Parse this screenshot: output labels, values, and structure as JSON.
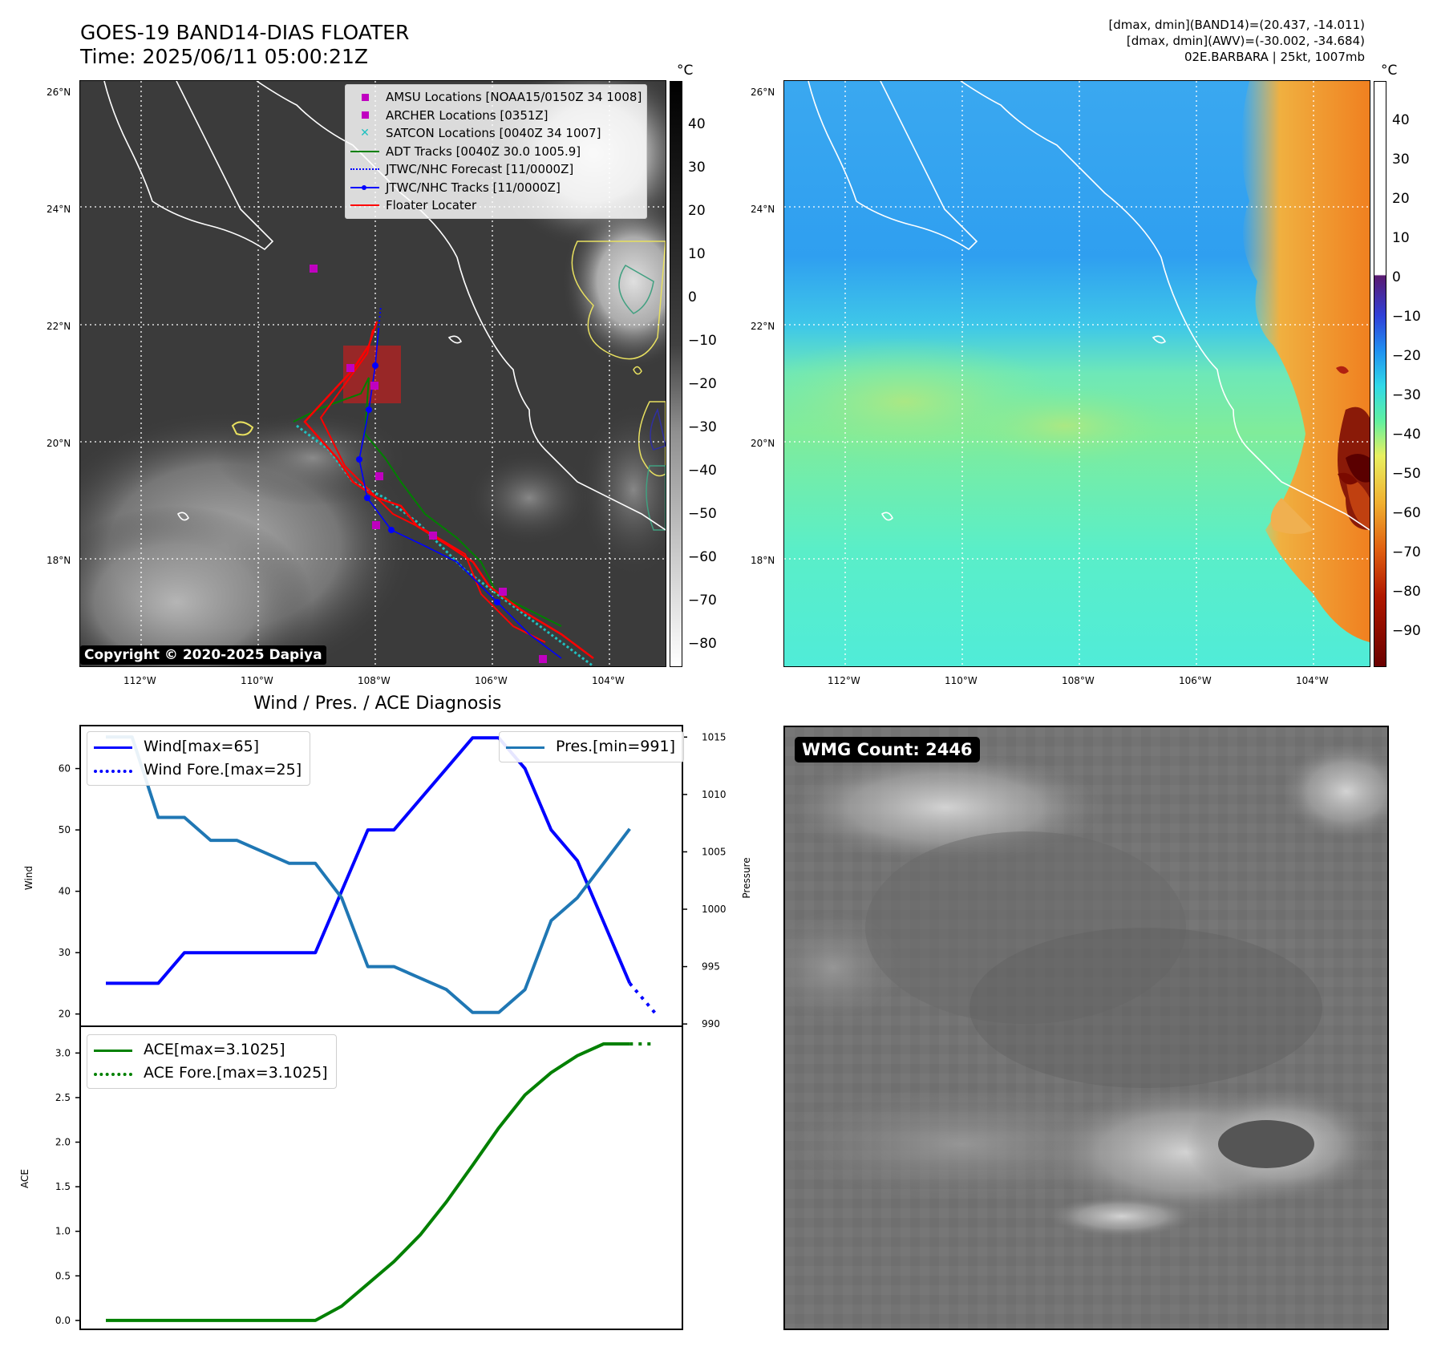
{
  "header": {
    "title_line1": "GOES-19 BAND14-DIAS FLOATER",
    "title_line2": "Time: 2025/06/11 05:00:21Z",
    "info_line1": "[dmax, dmin](BAND14)=(20.437, -14.011)",
    "info_line2": "[dmax, dmin](AWV)=(-30.002, -34.684)",
    "info_line3": "02E.BARBARA | 25kt, 1007mb"
  },
  "map_axes": {
    "lat_labels": [
      "26°N",
      "24°N",
      "22°N",
      "20°N",
      "18°N"
    ],
    "lon_labels": [
      "112°W",
      "110°W",
      "108°W",
      "106°W",
      "104°W"
    ]
  },
  "left_map": {
    "copyright": "Copyright © 2020-2025 Dapiya",
    "legend": [
      {
        "label": "AMSU Locations [NOAA15/0150Z 34 1008]",
        "symbol": "square",
        "color": "#c000c0"
      },
      {
        "label": "ARCHER Locations [0351Z]",
        "symbol": "square",
        "color": "#c000c0"
      },
      {
        "label": "SATCON Locations [0040Z 34 1007]",
        "symbol": "x",
        "color": "#20c0c0"
      },
      {
        "label": "ADT Tracks [0040Z 30.0 1005.9]",
        "symbol": "line",
        "color": "#008000"
      },
      {
        "label": "JTWC/NHC Forecast [11/0000Z]",
        "symbol": "dotted",
        "color": "#0000ff"
      },
      {
        "label": "JTWC/NHC Tracks [11/0000Z]",
        "symbol": "line-dot",
        "color": "#0000ff"
      },
      {
        "label": "Floater Locater",
        "symbol": "line",
        "color": "#ff0000"
      }
    ],
    "colorbar_unit": "°C",
    "colorbar_ticks": [
      "40",
      "30",
      "20",
      "10",
      "0",
      "−10",
      "−20",
      "−30",
      "−40",
      "−50",
      "−60",
      "−70",
      "−80"
    ]
  },
  "right_map": {
    "colorbar_unit": "°C",
    "colorbar_ticks": [
      "40",
      "30",
      "20",
      "10",
      "0",
      "−10",
      "−20",
      "−30",
      "−40",
      "−50",
      "−60",
      "−70",
      "−80",
      "−90"
    ]
  },
  "wmg_panel": {
    "label": "WMG Count: 2446"
  },
  "chart_data": [
    {
      "type": "line",
      "title": "Wind / Pres. / ACE Diagnosis",
      "ylabel": "Wind",
      "y2label": "Pressure",
      "ylim": [
        18,
        67
      ],
      "y2lim": [
        989.8,
        1016
      ],
      "yticks": [
        20,
        30,
        40,
        50,
        60
      ],
      "y2ticks": [
        990,
        995,
        1000,
        1005,
        1010,
        1015
      ],
      "x": [
        0,
        1,
        2,
        3,
        4,
        5,
        6,
        7,
        8,
        9,
        10,
        11,
        12,
        13,
        14,
        15,
        16,
        17,
        18,
        19,
        20,
        21
      ],
      "series": [
        {
          "name": "Wind[max=65]",
          "color": "#0000ff",
          "style": "solid",
          "values": [
            25,
            25,
            25,
            30,
            30,
            30,
            30,
            30,
            30,
            40,
            50,
            50,
            55,
            60,
            65,
            65,
            60,
            50,
            45,
            35,
            25,
            null
          ]
        },
        {
          "name": "Wind Fore.[max=25]",
          "color": "#0000ff",
          "style": "dotted",
          "values": [
            null,
            null,
            null,
            null,
            null,
            null,
            null,
            null,
            null,
            null,
            null,
            null,
            null,
            null,
            null,
            null,
            null,
            null,
            null,
            null,
            25,
            20
          ]
        },
        {
          "name": "Pres.[min=991]",
          "color": "#1f77b4",
          "style": "solid",
          "axis": "right",
          "values": [
            1015,
            1015,
            1008,
            1008,
            1006,
            1006,
            1005,
            1004,
            1004,
            1001,
            995,
            995,
            994,
            993,
            991,
            991,
            993,
            999,
            1001,
            1004,
            1007,
            null
          ]
        }
      ]
    },
    {
      "type": "line",
      "ylabel": "ACE",
      "ylim": [
        -0.1,
        3.3
      ],
      "yticks": [
        0.0,
        0.5,
        1.0,
        1.5,
        2.0,
        2.5,
        3.0
      ],
      "ytick_labels": [
        "0.0",
        "0.5",
        "1.0",
        "1.5",
        "2.0",
        "2.5",
        "3.0"
      ],
      "x": [
        0,
        1,
        2,
        3,
        4,
        5,
        6,
        7,
        8,
        9,
        10,
        11,
        12,
        13,
        14,
        15,
        16,
        17,
        18,
        19,
        20,
        21
      ],
      "series": [
        {
          "name": "ACE[max=3.1025]",
          "color": "#008000",
          "style": "solid",
          "values": [
            0,
            0,
            0,
            0,
            0,
            0,
            0,
            0,
            0,
            0.16,
            0.41,
            0.66,
            0.96,
            1.33,
            1.74,
            2.16,
            2.53,
            2.78,
            2.97,
            3.1025,
            3.1025,
            null
          ]
        },
        {
          "name": "ACE Fore.[max=3.1025]",
          "color": "#008000",
          "style": "dotted",
          "values": [
            null,
            null,
            null,
            null,
            null,
            null,
            null,
            null,
            null,
            null,
            null,
            null,
            null,
            null,
            null,
            null,
            null,
            null,
            null,
            null,
            3.1025,
            3.1025
          ]
        }
      ]
    }
  ]
}
